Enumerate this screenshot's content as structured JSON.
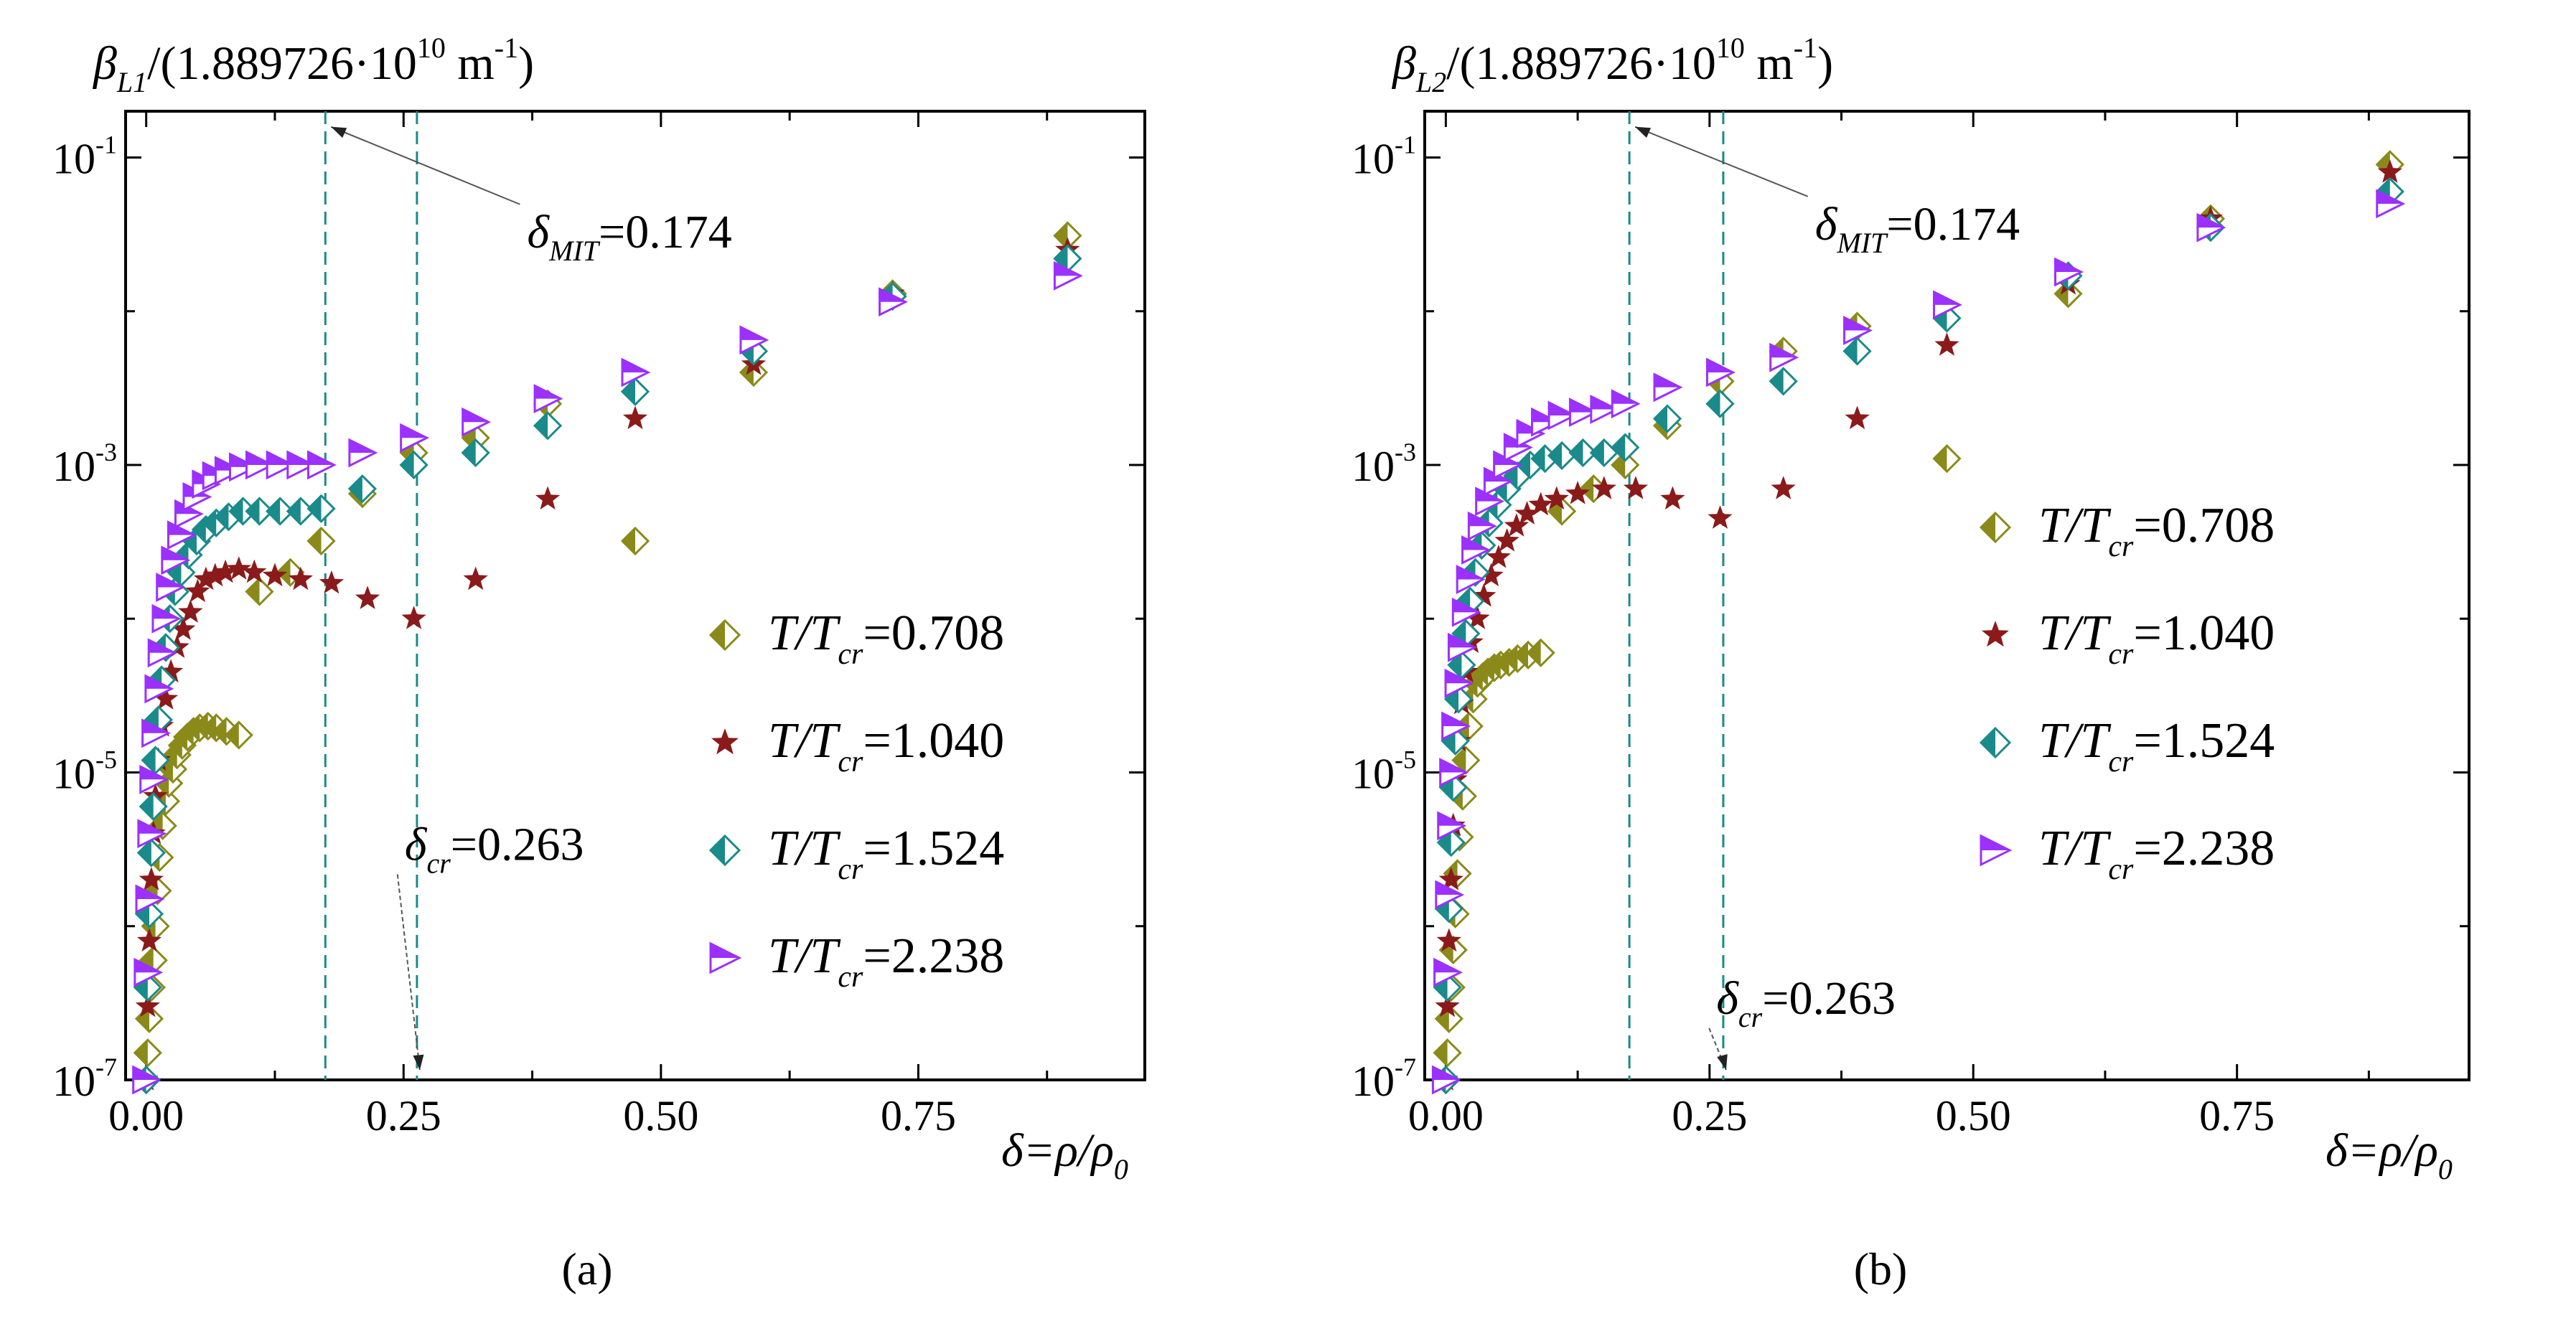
{
  "figure": {
    "panel_labels": [
      "(a)",
      "(b)"
    ]
  },
  "chart_data": [
    {
      "type": "scatter",
      "panel_label": "(a)",
      "ylabel": {
        "sym": "β",
        "sub": "L1",
        "pre": "/(1.889726·10",
        "exp": "10",
        "unit": " m",
        "uexp": "-1",
        "post": ")"
      },
      "xlabel": {
        "text": "δ=ρ/ρ",
        "sub": "0"
      },
      "yscale": "log",
      "xlim": [
        -0.02,
        0.97
      ],
      "ylim": [
        1e-07,
        0.2
      ],
      "xticks": [
        "0.00",
        "0.25",
        "0.50",
        "0.75"
      ],
      "xtick_values": [
        0,
        0.25,
        0.5,
        0.75
      ],
      "yticks": [
        {
          "base": "10",
          "exp": "-1",
          "value": 0.1
        },
        {
          "base": "10",
          "exp": "-3",
          "value": 0.001
        },
        {
          "base": "10",
          "exp": "-5",
          "value": 1e-05
        },
        {
          "base": "10",
          "exp": "-7",
          "value": 1e-07
        }
      ],
      "vlines": [
        0.174,
        0.263
      ],
      "annotations": [
        {
          "sym": "δ",
          "sub": "MIT",
          "value": "=0.174",
          "anchor_x": 0.174,
          "anchor_y": 0.18,
          "text_x": 0.37,
          "text_y": 0.04
        },
        {
          "sym": "δ",
          "sub": "cr",
          "value": "=0.263",
          "anchor_x": 0.263,
          "anchor_y": 1e-07,
          "text_x": 0.265,
          "text_y": 3e-06
        }
      ],
      "legend": {
        "placement": "center-right"
      },
      "series": [
        {
          "name": "T/Tcr=0.708",
          "label_a": "T/T",
          "label_sub": "cr",
          "label_val": "=0.708",
          "marker": "diamond-half",
          "color": "#8a8a1a",
          "x": [
            0.0,
            0.0015,
            0.003,
            0.005,
            0.007,
            0.009,
            0.011,
            0.013,
            0.016,
            0.019,
            0.022,
            0.026,
            0.03,
            0.035,
            0.04,
            0.046,
            0.052,
            0.06,
            0.068,
            0.078,
            0.09,
            0.11,
            0.14,
            0.17,
            0.21,
            0.26,
            0.32,
            0.39,
            0.475,
            0.59,
            0.725,
            0.895
          ],
          "y": [
            1e-07,
            1.5e-07,
            2.5e-07,
            4e-07,
            6e-07,
            1e-06,
            1.7e-06,
            2.8e-06,
            4.5e-06,
            6.5e-06,
            8.5e-06,
            1.05e-05,
            1.3e-05,
            1.5e-05,
            1.7e-05,
            1.85e-05,
            1.95e-05,
            2e-05,
            1.95e-05,
            1.85e-05,
            1.75e-05,
            0.00015,
            0.0002,
            0.00032,
            0.00065,
            0.0012,
            0.0015,
            0.0025,
            0.00032,
            0.004,
            0.013,
            0.031
          ]
        },
        {
          "name": "T/Tcr=1.040",
          "label_a": "T/T",
          "label_sub": "cr",
          "label_val": "=1.040",
          "marker": "star",
          "color": "#8b1a1a",
          "x": [
            0.0,
            0.0015,
            0.003,
            0.005,
            0.007,
            0.009,
            0.012,
            0.015,
            0.019,
            0.024,
            0.03,
            0.036,
            0.043,
            0.05,
            0.058,
            0.067,
            0.077,
            0.09,
            0.105,
            0.125,
            0.15,
            0.18,
            0.215,
            0.26,
            0.32,
            0.39,
            0.475,
            0.59,
            0.725,
            0.895
          ],
          "y": [
            1e-07,
            3e-07,
            8e-07,
            2e-06,
            4e-06,
            7e-06,
            1.2e-05,
            2e-05,
            3e-05,
            4.5e-05,
            6.5e-05,
            8.5e-05,
            0.00011,
            0.00015,
            0.00018,
            0.00019,
            0.0002,
            0.00021,
            0.0002,
            0.00019,
            0.00018,
            0.00017,
            0.000135,
            0.0001,
            0.00018,
            0.0006,
            0.002,
            0.0045,
            0.013,
            0.025
          ]
        },
        {
          "name": "T/Tcr=1.524",
          "label_a": "T/T",
          "label_sub": "cr",
          "label_val": "=1.524",
          "marker": "diamond-half-v",
          "color": "#1a8a8a",
          "x": [
            0.0,
            0.0015,
            0.003,
            0.005,
            0.007,
            0.009,
            0.012,
            0.015,
            0.019,
            0.023,
            0.028,
            0.034,
            0.041,
            0.049,
            0.058,
            0.068,
            0.08,
            0.094,
            0.11,
            0.13,
            0.15,
            0.17,
            0.21,
            0.26,
            0.32,
            0.39,
            0.475,
            0.59,
            0.725,
            0.895
          ],
          "y": [
            1e-07,
            4e-07,
            1.2e-06,
            3e-06,
            6e-06,
            1.2e-05,
            2.2e-05,
            4e-05,
            6.5e-05,
            0.0001,
            0.00015,
            0.0002,
            0.00026,
            0.00032,
            0.00038,
            0.00042,
            0.00046,
            0.0005,
            0.0005,
            0.0005,
            0.0005,
            0.00052,
            0.0007,
            0.001,
            0.0012,
            0.0018,
            0.003,
            0.0055,
            0.0125,
            0.022
          ]
        },
        {
          "name": "T/Tcr=2.238",
          "label_a": "T/T",
          "label_sub": "cr",
          "label_val": "=2.238",
          "marker": "triangle-right-half",
          "color": "#9b30ff",
          "x": [
            0.0,
            0.0015,
            0.003,
            0.005,
            0.007,
            0.009,
            0.012,
            0.015,
            0.019,
            0.023,
            0.028,
            0.034,
            0.041,
            0.049,
            0.058,
            0.068,
            0.08,
            0.094,
            0.11,
            0.13,
            0.15,
            0.17,
            0.21,
            0.26,
            0.32,
            0.39,
            0.475,
            0.59,
            0.725,
            0.895
          ],
          "y": [
            1e-07,
            5e-07,
            1.5e-06,
            4e-06,
            9e-06,
            1.8e-05,
            3.5e-05,
            6e-05,
            0.0001,
            0.00016,
            0.00024,
            0.00035,
            0.00048,
            0.00062,
            0.00075,
            0.00085,
            0.00092,
            0.00097,
            0.001,
            0.001,
            0.001,
            0.001,
            0.0012,
            0.0015,
            0.0019,
            0.0027,
            0.004,
            0.0065,
            0.0115,
            0.017
          ]
        }
      ]
    },
    {
      "type": "scatter",
      "panel_label": "(b)",
      "ylabel": {
        "sym": "β",
        "sub": "L2",
        "pre": "/(1.889726·10",
        "exp": "10",
        "unit": " m",
        "uexp": "-1",
        "post": ")"
      },
      "xlabel": {
        "text": "δ=ρ/ρ",
        "sub": "0"
      },
      "yscale": "log",
      "xlim": [
        -0.02,
        0.97
      ],
      "ylim": [
        1e-07,
        0.2
      ],
      "xticks": [
        "0.00",
        "0.25",
        "0.50",
        "0.75"
      ],
      "xtick_values": [
        0,
        0.25,
        0.5,
        0.75
      ],
      "yticks": [
        {
          "base": "10",
          "exp": "-1",
          "value": 0.1
        },
        {
          "base": "10",
          "exp": "-3",
          "value": 0.001
        },
        {
          "base": "10",
          "exp": "-5",
          "value": 1e-05
        },
        {
          "base": "10",
          "exp": "-7",
          "value": 1e-07
        }
      ],
      "vlines": [
        0.174,
        0.263
      ],
      "annotations": [
        {
          "sym": "δ",
          "sub": "MIT",
          "value": "=0.174",
          "anchor_x": 0.174,
          "anchor_y": 0.18,
          "text_x": 0.35,
          "text_y": 0.045
        },
        {
          "sym": "δ",
          "sub": "cr",
          "value": "=0.263",
          "anchor_x": 0.263,
          "anchor_y": 1e-07,
          "text_x": 0.27,
          "text_y": 3e-07
        }
      ],
      "legend": {
        "placement": "right"
      },
      "series": [
        {
          "name": "T/Tcr=0.708",
          "label_a": "T/T",
          "label_sub": "cr",
          "label_val": "=0.708",
          "marker": "diamond-half",
          "color": "#8a8a1a",
          "x": [
            0.0,
            0.0015,
            0.003,
            0.005,
            0.007,
            0.009,
            0.011,
            0.013,
            0.016,
            0.019,
            0.022,
            0.026,
            0.03,
            0.035,
            0.04,
            0.046,
            0.052,
            0.06,
            0.068,
            0.078,
            0.09,
            0.11,
            0.14,
            0.17,
            0.21,
            0.26,
            0.32,
            0.39,
            0.475,
            0.59,
            0.725,
            0.895
          ],
          "y": [
            1e-07,
            1.5e-07,
            2.5e-07,
            4e-07,
            7e-07,
            1.2e-06,
            2.2e-06,
            3.8e-06,
            7e-06,
            1.2e-05,
            2e-05,
            3e-05,
            3.8e-05,
            4.2e-05,
            4.5e-05,
            4.8e-05,
            5e-05,
            5.2e-05,
            5.5e-05,
            5.8e-05,
            6e-05,
            0.0005,
            0.0007,
            0.001,
            0.0018,
            0.0035,
            0.0055,
            0.008,
            0.0011,
            0.013,
            0.04,
            0.09
          ]
        },
        {
          "name": "T/Tcr=1.040",
          "label_a": "T/T",
          "label_sub": "cr",
          "label_val": "=1.040",
          "marker": "star",
          "color": "#8b1a1a",
          "x": [
            0.0,
            0.0015,
            0.003,
            0.005,
            0.007,
            0.009,
            0.012,
            0.015,
            0.019,
            0.024,
            0.03,
            0.036,
            0.043,
            0.05,
            0.058,
            0.067,
            0.077,
            0.09,
            0.105,
            0.125,
            0.15,
            0.18,
            0.215,
            0.26,
            0.32,
            0.39,
            0.475,
            0.59,
            0.725,
            0.895
          ],
          "y": [
            1e-07,
            3e-07,
            8e-07,
            2e-06,
            4.5e-06,
            9e-06,
            1.6e-05,
            2.8e-05,
            4.5e-05,
            7e-05,
            0.0001,
            0.00014,
            0.00019,
            0.00025,
            0.00032,
            0.0004,
            0.00048,
            0.00055,
            0.0006,
            0.00065,
            0.0007,
            0.0007,
            0.0006,
            0.00045,
            0.0007,
            0.002,
            0.006,
            0.015,
            0.04,
            0.08
          ]
        },
        {
          "name": "T/Tcr=1.524",
          "label_a": "T/T",
          "label_sub": "cr",
          "label_val": "=1.524",
          "marker": "diamond-half-v",
          "color": "#1a8a8a",
          "x": [
            0.0,
            0.0015,
            0.003,
            0.005,
            0.007,
            0.009,
            0.012,
            0.015,
            0.019,
            0.023,
            0.028,
            0.034,
            0.041,
            0.049,
            0.058,
            0.068,
            0.08,
            0.094,
            0.11,
            0.13,
            0.15,
            0.17,
            0.21,
            0.26,
            0.32,
            0.39,
            0.475,
            0.59,
            0.725,
            0.895
          ],
          "y": [
            1e-07,
            4e-07,
            1.3e-06,
            3.5e-06,
            8e-06,
            1.6e-05,
            3e-05,
            5e-05,
            8e-05,
            0.00013,
            0.0002,
            0.0003,
            0.00042,
            0.00055,
            0.0007,
            0.00085,
            0.001,
            0.0011,
            0.00115,
            0.0012,
            0.0012,
            0.0013,
            0.002,
            0.0025,
            0.0035,
            0.0055,
            0.009,
            0.017,
            0.035,
            0.06
          ]
        },
        {
          "name": "T/Tcr=2.238",
          "label_a": "T/T",
          "label_sub": "cr",
          "label_val": "=2.238",
          "marker": "triangle-right-half",
          "color": "#9b30ff",
          "x": [
            0.0,
            0.0015,
            0.003,
            0.005,
            0.007,
            0.009,
            0.012,
            0.015,
            0.019,
            0.023,
            0.028,
            0.034,
            0.041,
            0.049,
            0.058,
            0.068,
            0.08,
            0.094,
            0.11,
            0.13,
            0.15,
            0.17,
            0.21,
            0.26,
            0.32,
            0.39,
            0.475,
            0.59,
            0.725,
            0.895
          ],
          "y": [
            1e-07,
            5e-07,
            1.6e-06,
            4.5e-06,
            1e-05,
            2e-05,
            3.8e-05,
            6.5e-05,
            0.00011,
            0.00018,
            0.00028,
            0.0004,
            0.00058,
            0.00078,
            0.001,
            0.0013,
            0.0016,
            0.0019,
            0.0021,
            0.0022,
            0.0023,
            0.0025,
            0.0032,
            0.004,
            0.005,
            0.0075,
            0.011,
            0.018,
            0.035,
            0.05
          ]
        }
      ]
    }
  ]
}
